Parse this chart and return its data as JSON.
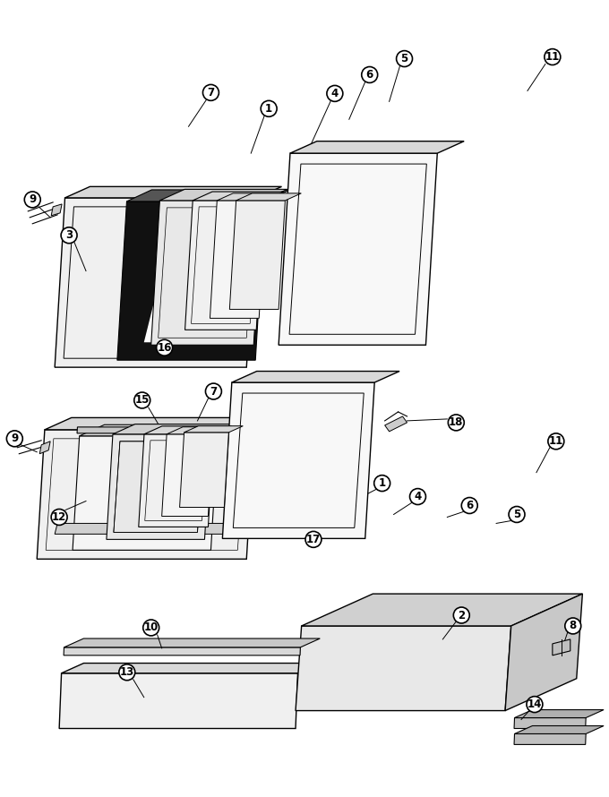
{
  "bg_color": "#ffffff",
  "line_color": "#000000",
  "fig_w": 6.8,
  "fig_h": 8.9,
  "dpi": 100
}
